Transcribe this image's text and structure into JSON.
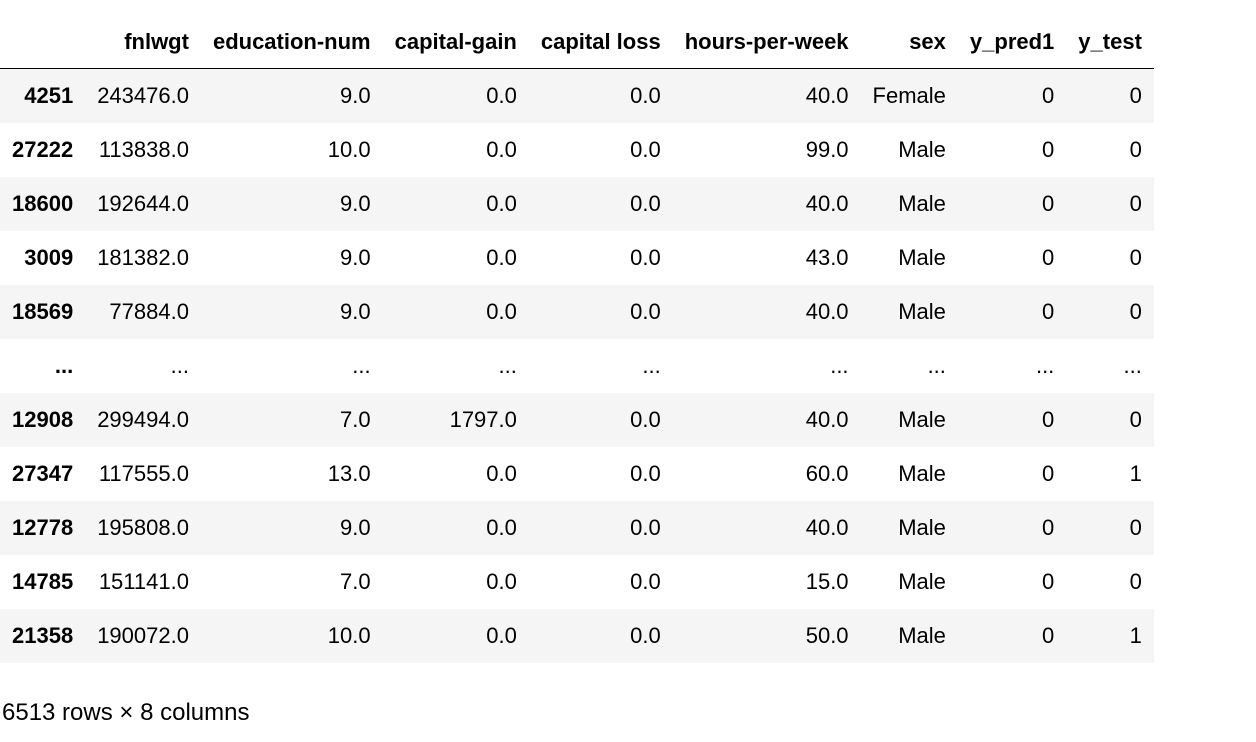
{
  "table": {
    "index_header": "",
    "columns": [
      "fnlwgt",
      "education-num",
      "capital-gain",
      "capital loss",
      "hours-per-week",
      "sex",
      "y_pred1",
      "y_test"
    ],
    "rows": [
      {
        "index": "4251",
        "cells": [
          "243476.0",
          "9.0",
          "0.0",
          "0.0",
          "40.0",
          "Female",
          "0",
          "0"
        ]
      },
      {
        "index": "27222",
        "cells": [
          "113838.0",
          "10.0",
          "0.0",
          "0.0",
          "99.0",
          "Male",
          "0",
          "0"
        ]
      },
      {
        "index": "18600",
        "cells": [
          "192644.0",
          "9.0",
          "0.0",
          "0.0",
          "40.0",
          "Male",
          "0",
          "0"
        ]
      },
      {
        "index": "3009",
        "cells": [
          "181382.0",
          "9.0",
          "0.0",
          "0.0",
          "43.0",
          "Male",
          "0",
          "0"
        ]
      },
      {
        "index": "18569",
        "cells": [
          "77884.0",
          "9.0",
          "0.0",
          "0.0",
          "40.0",
          "Male",
          "0",
          "0"
        ]
      },
      {
        "index": "...",
        "cells": [
          "...",
          "...",
          "...",
          "...",
          "...",
          "...",
          "...",
          "..."
        ]
      },
      {
        "index": "12908",
        "cells": [
          "299494.0",
          "7.0",
          "1797.0",
          "0.0",
          "40.0",
          "Male",
          "0",
          "0"
        ]
      },
      {
        "index": "27347",
        "cells": [
          "117555.0",
          "13.0",
          "0.0",
          "0.0",
          "60.0",
          "Male",
          "0",
          "1"
        ]
      },
      {
        "index": "12778",
        "cells": [
          "195808.0",
          "9.0",
          "0.0",
          "0.0",
          "40.0",
          "Male",
          "0",
          "0"
        ]
      },
      {
        "index": "14785",
        "cells": [
          "151141.0",
          "7.0",
          "0.0",
          "0.0",
          "15.0",
          "Male",
          "0",
          "0"
        ]
      },
      {
        "index": "21358",
        "cells": [
          "190072.0",
          "10.0",
          "0.0",
          "0.0",
          "50.0",
          "Male",
          "0",
          "1"
        ]
      }
    ]
  },
  "footer": {
    "shape_text": "6513 rows × 8 columns"
  },
  "colors": {
    "stripe": "#f5f5f5",
    "background": "#ffffff",
    "header_rule": "#000000"
  }
}
